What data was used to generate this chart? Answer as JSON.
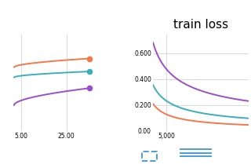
{
  "title": "train loss",
  "title_fontsize": 11,
  "colors": {
    "orange": "#F4784A",
    "teal": "#3BAFBA",
    "purple": "#9B4FC7"
  },
  "background_color": "#ffffff",
  "grid_color": "#cccccc",
  "left_plot": {
    "x_range": [
      -2,
      40
    ],
    "y_range": [
      0.3,
      0.75
    ],
    "x_ticks": [
      5.0,
      25.0
    ],
    "lines": [
      {
        "color": "#F4784A",
        "y0": 0.595,
        "y1": 0.635
      },
      {
        "color": "#3BAFBA",
        "y0": 0.548,
        "y1": 0.575
      },
      {
        "color": "#9B4FC7",
        "y0": 0.42,
        "y1": 0.498
      }
    ]
  },
  "right_plot": {
    "x_range": [
      2500,
      20000
    ],
    "y_range": [
      0.0,
      0.75
    ],
    "x_ticks": [
      5000
    ],
    "y_ticks": [
      0.0,
      0.2,
      0.4,
      0.6
    ],
    "lines": [
      {
        "color": "#F4784A",
        "y_start": 0.21,
        "decay": 0.72
      },
      {
        "color": "#3BAFBA",
        "y_start": 0.355,
        "decay": 0.62
      },
      {
        "color": "#9B4FC7",
        "y_start": 0.68,
        "decay": 0.52
      }
    ]
  }
}
